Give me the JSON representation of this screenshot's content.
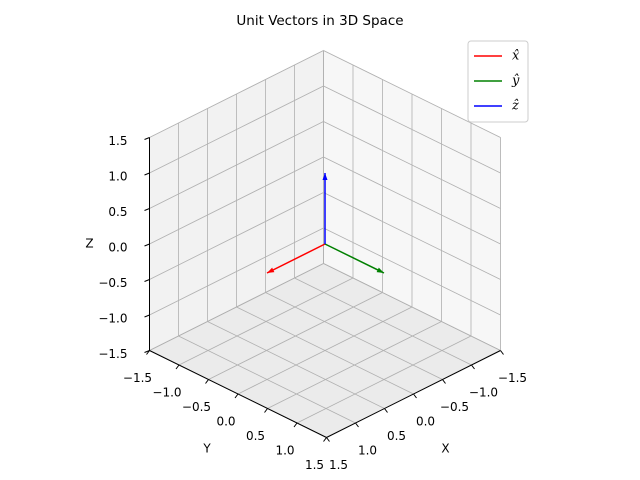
{
  "chart_data": {
    "type": "vector3d",
    "title": "Unit Vectors in 3D Space",
    "xlabel": "X",
    "ylabel": "Y",
    "zlabel": "Z",
    "series": [
      {
        "name": "x̂",
        "color": "#ff0000",
        "origin": [
          0,
          0,
          0
        ],
        "vector": [
          1,
          0,
          0
        ]
      },
      {
        "name": "ŷ",
        "color": "#008000",
        "origin": [
          0,
          0,
          0
        ],
        "vector": [
          0,
          1,
          0
        ]
      },
      {
        "name": "ẑ",
        "color": "#0000ff",
        "origin": [
          0,
          0,
          0
        ],
        "vector": [
          0,
          0,
          1
        ]
      }
    ],
    "xlim": [
      -1.5,
      1.5
    ],
    "ylim": [
      -1.5,
      1.5
    ],
    "zlim": [
      -1.5,
      1.5
    ],
    "xticks": [
      {
        "value": -1.5,
        "label": "−1.5"
      },
      {
        "value": -1,
        "label": "−1.0"
      },
      {
        "value": -0.5,
        "label": "−0.5"
      },
      {
        "value": 0,
        "label": "0.0"
      },
      {
        "value": 0.5,
        "label": "0.5"
      },
      {
        "value": 1,
        "label": "1.0"
      },
      {
        "value": 1.5,
        "label": "1.5"
      }
    ],
    "yticks": [
      {
        "value": -1.5,
        "label": "−1.5"
      },
      {
        "value": -1,
        "label": "−1.0"
      },
      {
        "value": -0.5,
        "label": "−0.5"
      },
      {
        "value": 0,
        "label": "0.0"
      },
      {
        "value": 0.5,
        "label": "0.5"
      },
      {
        "value": 1,
        "label": "1.0"
      },
      {
        "value": 1.5,
        "label": "1.5"
      }
    ],
    "zticks": [
      {
        "value": -1.5,
        "label": "−1.5"
      },
      {
        "value": -1,
        "label": "−1.0"
      },
      {
        "value": -0.5,
        "label": "−0.5"
      },
      {
        "value": 0,
        "label": "0.0"
      },
      {
        "value": 0.5,
        "label": "0.5"
      },
      {
        "value": 1,
        "label": "1.0"
      },
      {
        "value": 1.5,
        "label": "1.5"
      }
    ],
    "grid": true,
    "legend": "upper right"
  }
}
